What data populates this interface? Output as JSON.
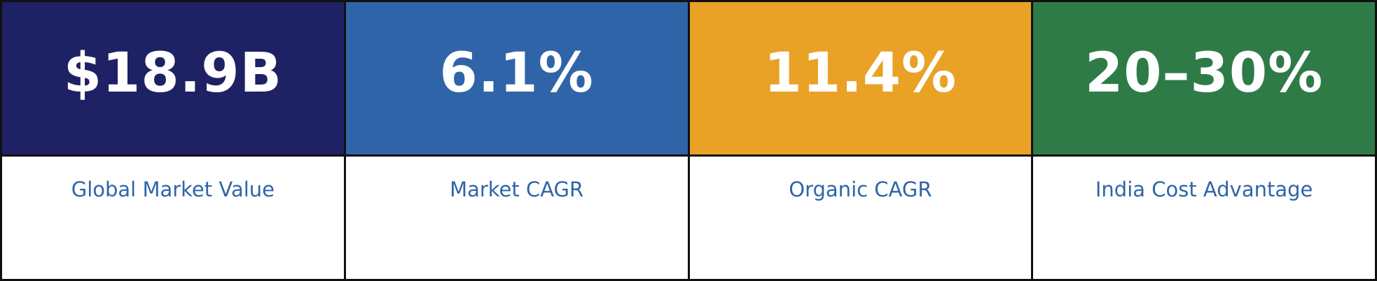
{
  "chart_data": {
    "type": "table",
    "title": "",
    "columns": [
      "Global Market Value",
      "Market CAGR",
      "Organic CAGR",
      "India Cost Advantage"
    ],
    "values": [
      "$18.9B",
      "6.1%",
      "11.4%",
      "20–30%"
    ]
  },
  "cards": [
    {
      "value": "$18.9B",
      "label": "Global Market Value",
      "color": "#1f2165"
    },
    {
      "value": "6.1%",
      "label": "Market CAGR",
      "color": "#3064a9"
    },
    {
      "value": "11.4%",
      "label": "Organic CAGR",
      "color": "#e9a226"
    },
    {
      "value": "20–30%",
      "label": "India Cost Advantage",
      "color": "#2e7b48"
    }
  ],
  "colors": {
    "border": "#101010",
    "value_text": "#ffffff",
    "label_text": "#2f65a8",
    "label_background": "#ffffff"
  }
}
